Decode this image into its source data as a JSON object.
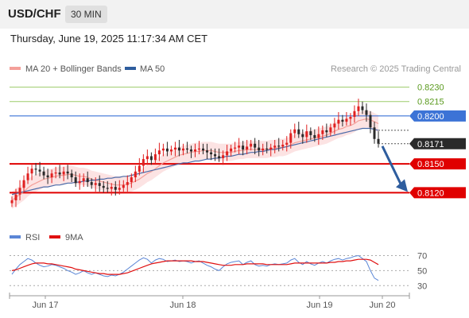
{
  "header": {
    "symbol": "USD/CHF",
    "timeframe": "30 MIN",
    "datetime": "Thursday, June 19, 2025 11:17:34 AM CET"
  },
  "legend": {
    "items": [
      {
        "label": "MA 20 + Bollinger Bands",
        "color": "#f4a09a"
      },
      {
        "label": "MA 50",
        "color": "#2e5d9e"
      }
    ],
    "rsi_items": [
      {
        "label": "RSI",
        "color": "#5b86d6"
      },
      {
        "label": "9MA",
        "color": "#e01010"
      }
    ],
    "credit": "Research © 2025 Trading Central"
  },
  "colors": {
    "bull": "#e02020",
    "bear": "#2a2a2a",
    "band_fill": "#fbdcdc",
    "ma20": "#f4a09a",
    "ma50": "#4a6aa8",
    "resistance_green": "#9ccc6a",
    "pivot_blue": "#3c73d6",
    "support_red": "#e00000",
    "arrow": "#2e5d9e"
  },
  "chart_data": {
    "type": "candlestick",
    "instrument": "USD/CHF",
    "ylim": [
      0.8107,
      0.8238
    ],
    "x_ticks": [
      "Jun 17",
      "Jun 18",
      "Jun 19",
      "Jun 20"
    ],
    "levels": [
      {
        "value": 0.823,
        "label": "0.8230",
        "kind": "resistance"
      },
      {
        "value": 0.8215,
        "label": "0.8215",
        "kind": "resistance"
      },
      {
        "value": 0.82,
        "label": "0.8200",
        "kind": "pivot"
      },
      {
        "value": 0.815,
        "label": "0.8150",
        "kind": "support"
      },
      {
        "value": 0.812,
        "label": "0.8120",
        "kind": "support"
      }
    ],
    "current_price": {
      "value": 0.8171,
      "label": "0.8171"
    },
    "forecast_arrow": {
      "from": 0.8171,
      "to": 0.812
    },
    "closes": [
      0.8112,
      0.8118,
      0.8125,
      0.8133,
      0.814,
      0.8145,
      0.8144,
      0.8142,
      0.8138,
      0.8136,
      0.814,
      0.8141,
      0.8139,
      0.8142,
      0.814,
      0.8136,
      0.813,
      0.8132,
      0.8135,
      0.8131,
      0.8128,
      0.813,
      0.8127,
      0.8125,
      0.8124,
      0.8126,
      0.8123,
      0.8125,
      0.8128,
      0.8131,
      0.8136,
      0.8142,
      0.8148,
      0.8155,
      0.8158,
      0.8154,
      0.816,
      0.8164,
      0.8166,
      0.8163,
      0.8165,
      0.8167,
      0.8164,
      0.8166,
      0.8165,
      0.8163,
      0.8165,
      0.8166,
      0.8164,
      0.8162,
      0.816,
      0.8158,
      0.8156,
      0.8159,
      0.8163,
      0.8166,
      0.8167,
      0.8169,
      0.8165,
      0.8168,
      0.8171,
      0.8167,
      0.8164,
      0.8166,
      0.8165,
      0.8167,
      0.8169,
      0.8168,
      0.817,
      0.8172,
      0.8182,
      0.8186,
      0.8181,
      0.8178,
      0.8184,
      0.818,
      0.8177,
      0.8181,
      0.8185,
      0.8183,
      0.8188,
      0.8192,
      0.8196,
      0.8194,
      0.8197,
      0.8199,
      0.8205,
      0.821,
      0.8206,
      0.8201,
      0.8188,
      0.8176,
      0.8171
    ],
    "ma20": [
      0.8112,
      0.8115,
      0.8118,
      0.8121,
      0.8125,
      0.8128,
      0.813,
      0.8132,
      0.8134,
      0.8135,
      0.8136,
      0.8137,
      0.8138,
      0.8138,
      0.8139,
      0.8139,
      0.8138,
      0.8137,
      0.8137,
      0.8136,
      0.8134,
      0.8133,
      0.8132,
      0.8131,
      0.813,
      0.8129,
      0.8128,
      0.8128,
      0.8128,
      0.8129,
      0.813,
      0.8132,
      0.8134,
      0.8137,
      0.814,
      0.8142,
      0.8145,
      0.8148,
      0.8151,
      0.8153,
      0.8155,
      0.8157,
      0.8159,
      0.816,
      0.8161,
      0.8162,
      0.8163,
      0.8163,
      0.8164,
      0.8164,
      0.8164,
      0.8163,
      0.8162,
      0.8162,
      0.8162,
      0.8162,
      0.8163,
      0.8164,
      0.8164,
      0.8165,
      0.8165,
      0.8165,
      0.8165,
      0.8165,
      0.8165,
      0.8166,
      0.8166,
      0.8167,
      0.8167,
      0.8168,
      0.817,
      0.8172,
      0.8173,
      0.8174,
      0.8175,
      0.8176,
      0.8177,
      0.8178,
      0.8179,
      0.818,
      0.8182,
      0.8184,
      0.8186,
      0.8187,
      0.8189,
      0.819,
      0.8192,
      0.8195,
      0.8196,
      0.8197,
      0.8196,
      0.8194,
      0.8192
    ],
    "ma50": [
      0.8118,
      0.8119,
      0.812,
      0.8121,
      0.8122,
      0.8123,
      0.8124,
      0.8125,
      0.8126,
      0.8126,
      0.8127,
      0.8128,
      0.8128,
      0.8129,
      0.813,
      0.813,
      0.8131,
      0.8131,
      0.8132,
      0.8132,
      0.8133,
      0.8133,
      0.8134,
      0.8134,
      0.8135,
      0.8135,
      0.8136,
      0.8136,
      0.8137,
      0.8137,
      0.8138,
      0.8139,
      0.814,
      0.8141,
      0.8142,
      0.8143,
      0.8144,
      0.8145,
      0.8146,
      0.8147,
      0.8148,
      0.8149,
      0.815,
      0.8151,
      0.8151,
      0.8152,
      0.8153,
      0.8153,
      0.8154,
      0.8155,
      0.8155,
      0.8156,
      0.8156,
      0.8157,
      0.8158,
      0.8158,
      0.8159,
      0.816,
      0.816,
      0.8161,
      0.8162,
      0.8162,
      0.8163,
      0.8163,
      0.8164,
      0.8165,
      0.8165,
      0.8166,
      0.8167,
      0.8168,
      0.8169,
      0.817,
      0.8171,
      0.8172,
      0.8173,
      0.8174,
      0.8175,
      0.8176,
      0.8177,
      0.8178,
      0.8179,
      0.818,
      0.8181,
      0.8182,
      0.8183,
      0.8184,
      0.8185,
      0.8186,
      0.8187,
      0.8187,
      0.8187,
      0.8186,
      0.8185
    ],
    "band_width": 0.0009,
    "rsi": {
      "ylim": [
        25,
        80
      ],
      "levels": [
        70,
        50,
        30
      ],
      "values": [
        45,
        52,
        58,
        62,
        66,
        64,
        60,
        57,
        55,
        56,
        58,
        57,
        55,
        53,
        50,
        48,
        45,
        47,
        50,
        47,
        45,
        47,
        45,
        43,
        42,
        44,
        43,
        45,
        48,
        52,
        56,
        60,
        64,
        67,
        65,
        60,
        64,
        66,
        65,
        62,
        63,
        64,
        62,
        63,
        62,
        60,
        62,
        63,
        60,
        57,
        55,
        52,
        50,
        55,
        59,
        61,
        62,
        63,
        58,
        61,
        63,
        58,
        56,
        57,
        56,
        58,
        59,
        58,
        59,
        60,
        64,
        66,
        61,
        58,
        62,
        59,
        57,
        60,
        62,
        60,
        63,
        65,
        66,
        64,
        66,
        67,
        69,
        70,
        66,
        62,
        50,
        40,
        37
      ],
      "ma": [
        50,
        51,
        53,
        55,
        57,
        59,
        60,
        60,
        60,
        59,
        59,
        58,
        57,
        56,
        55,
        54,
        52,
        51,
        50,
        49,
        48,
        47,
        46,
        46,
        45,
        45,
        45,
        45,
        46,
        47,
        49,
        51,
        53,
        55,
        57,
        59,
        60,
        61,
        62,
        63,
        63,
        63,
        63,
        63,
        63,
        63,
        62,
        62,
        62,
        61,
        60,
        59,
        58,
        57,
        57,
        57,
        58,
        58,
        58,
        59,
        59,
        59,
        59,
        59,
        58,
        58,
        58,
        58,
        58,
        58,
        59,
        60,
        60,
        60,
        60,
        60,
        60,
        60,
        60,
        60,
        61,
        61,
        62,
        62,
        63,
        63,
        64,
        65,
        65,
        65,
        64,
        61,
        58
      ]
    }
  }
}
